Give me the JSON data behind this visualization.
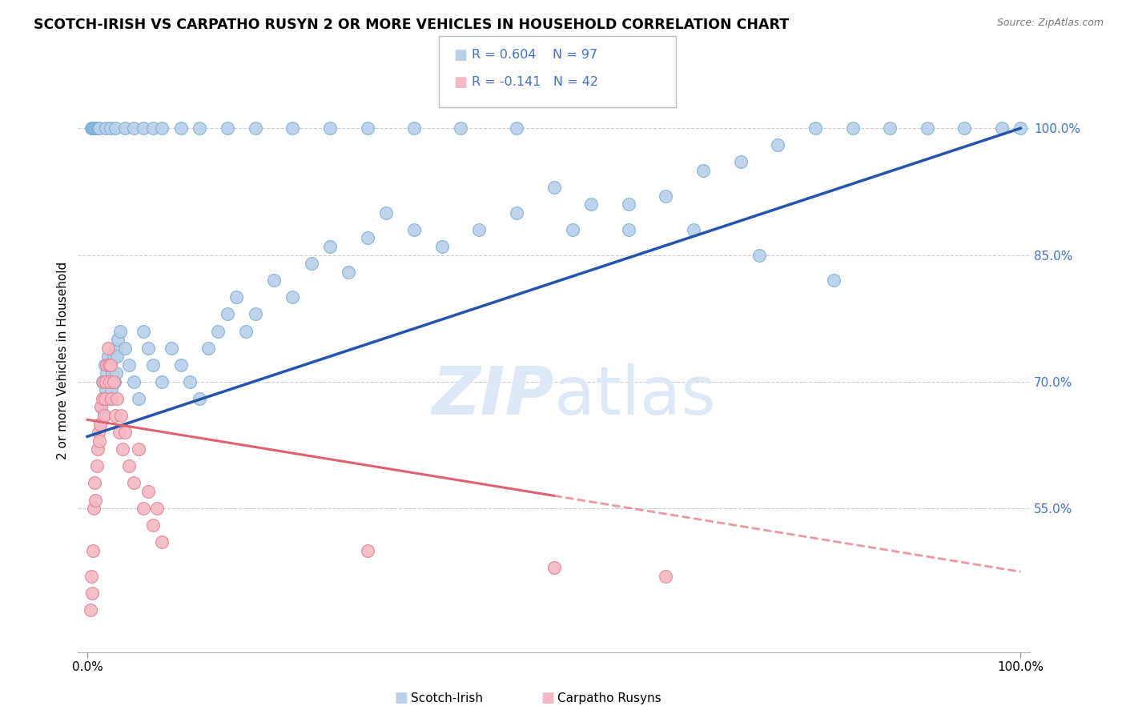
{
  "title": "SCOTCH-IRISH VS CARPATHO RUSYN 2 OR MORE VEHICLES IN HOUSEHOLD CORRELATION CHART",
  "source": "Source: ZipAtlas.com",
  "ylabel": "2 or more Vehicles in Household",
  "y_ticks": [
    55.0,
    70.0,
    85.0,
    100.0
  ],
  "y_tick_labels": [
    "55.0%",
    "70.0%",
    "85.0%",
    "100.0%"
  ],
  "x_range": [
    0.0,
    100.0
  ],
  "y_range": [
    40.0,
    105.0
  ],
  "blue_R": 0.604,
  "blue_N": 97,
  "pink_R": -0.141,
  "pink_N": 42,
  "blue_color": "#b8d0e8",
  "blue_edge": "#7aadd4",
  "pink_color": "#f4b8c4",
  "pink_edge": "#e08090",
  "blue_line_color": "#2255aa",
  "pink_line_color": "#e06070",
  "watermark_color": "#dce8f5",
  "legend_label_blue": "Scotch-Irish",
  "legend_label_pink": "Carpatho Rusyns",
  "blue_line_x0": 0,
  "blue_line_y0": 63.5,
  "blue_line_x1": 100,
  "blue_line_y1": 100.0,
  "pink_line_x0": 0,
  "pink_line_y0": 65.5,
  "pink_line_x1": 100,
  "pink_line_y1": 47.5,
  "pink_solid_end": 50,
  "blue_scatter_x": [
    0.4,
    0.5,
    0.6,
    0.7,
    0.8,
    0.9,
    1.0,
    1.1,
    1.2,
    1.3,
    1.4,
    1.5,
    1.6,
    1.7,
    1.8,
    1.9,
    2.0,
    2.1,
    2.2,
    2.3,
    2.4,
    2.5,
    2.6,
    2.7,
    2.8,
    2.9,
    3.0,
    3.1,
    3.2,
    3.3,
    3.5,
    4.0,
    4.5,
    5.0,
    5.5,
    6.0,
    6.5,
    7.0,
    8.0,
    9.0,
    10.0,
    11.0,
    12.0,
    13.0,
    14.0,
    15.0,
    16.0,
    17.0,
    18.0,
    20.0,
    22.0,
    24.0,
    26.0,
    28.0,
    30.0,
    32.0,
    35.0,
    38.0,
    42.0,
    46.0,
    50.0,
    54.0,
    58.0,
    62.0,
    66.0,
    70.0,
    74.0,
    78.0,
    82.0,
    86.0,
    90.0,
    94.0,
    98.0,
    100.0,
    2.0,
    2.5,
    3.0,
    4.0,
    5.0,
    6.0,
    7.0,
    8.0,
    10.0,
    12.0,
    15.0,
    18.0,
    22.0,
    26.0,
    30.0,
    35.0,
    40.0,
    46.0,
    52.0,
    58.0,
    65.0,
    72.0,
    80.0
  ],
  "blue_scatter_y": [
    100,
    100,
    100,
    100,
    100,
    100,
    100,
    100,
    100,
    100,
    65,
    67,
    70,
    68,
    66,
    72,
    69,
    71,
    73,
    70,
    68,
    72,
    69,
    71,
    73,
    70,
    74,
    71,
    73,
    75,
    76,
    74,
    72,
    70,
    68,
    76,
    74,
    72,
    70,
    74,
    72,
    70,
    68,
    74,
    76,
    78,
    80,
    76,
    78,
    82,
    80,
    84,
    86,
    83,
    87,
    90,
    88,
    86,
    88,
    90,
    93,
    91,
    88,
    92,
    95,
    96,
    98,
    100,
    100,
    100,
    100,
    100,
    100,
    100,
    100,
    100,
    100,
    100,
    100,
    100,
    100,
    100,
    100,
    100,
    100,
    100,
    100,
    100,
    100,
    100,
    100,
    100,
    88,
    91,
    88,
    85,
    82
  ],
  "pink_scatter_x": [
    0.3,
    0.4,
    0.5,
    0.6,
    0.7,
    0.8,
    0.9,
    1.0,
    1.1,
    1.2,
    1.3,
    1.4,
    1.5,
    1.6,
    1.7,
    1.8,
    1.9,
    2.0,
    2.1,
    2.2,
    2.3,
    2.4,
    2.5,
    2.6,
    2.8,
    3.0,
    3.2,
    3.4,
    3.6,
    3.8,
    4.0,
    4.5,
    5.0,
    5.5,
    6.0,
    6.5,
    7.0,
    7.5,
    8.0,
    30.0,
    50.0,
    62.0
  ],
  "pink_scatter_y": [
    43,
    47,
    45,
    50,
    55,
    58,
    56,
    60,
    62,
    64,
    63,
    65,
    67,
    68,
    70,
    66,
    68,
    70,
    72,
    74,
    72,
    70,
    72,
    68,
    70,
    66,
    68,
    64,
    66,
    62,
    64,
    60,
    58,
    62,
    55,
    57,
    53,
    55,
    51,
    50,
    48,
    47
  ]
}
